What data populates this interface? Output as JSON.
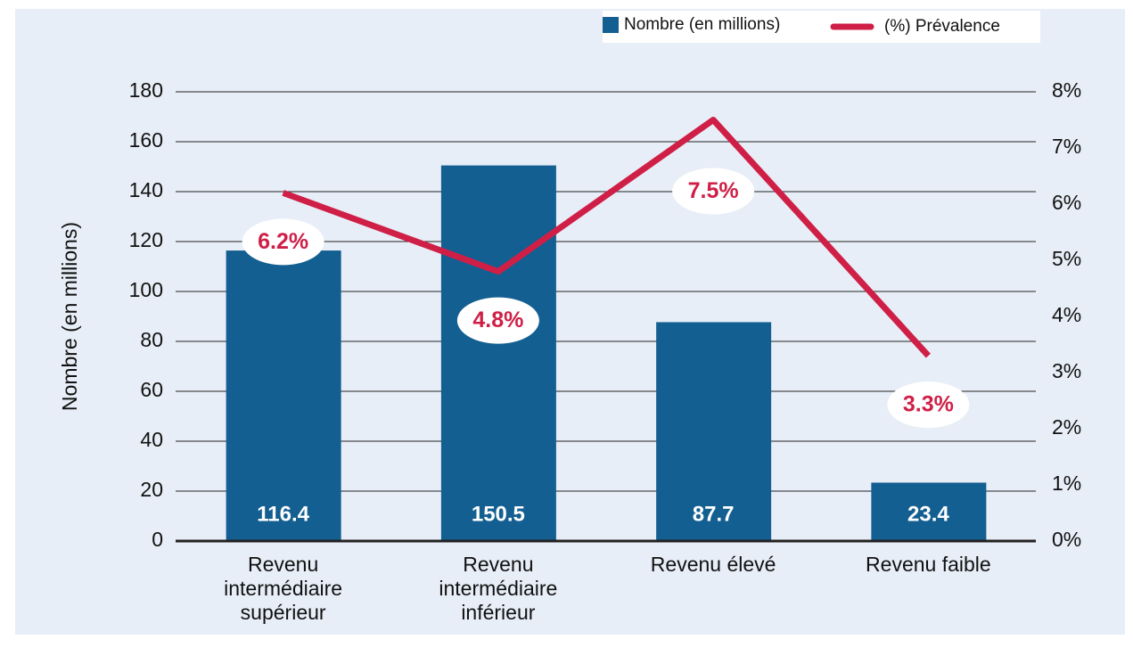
{
  "chart_data": {
    "type": "bar_line",
    "categories": [
      "Revenu intermédiaire supérieur",
      "Revenu intermédiaire inférieur",
      "Revenu élevé",
      "Revenu faible"
    ],
    "series": [
      {
        "name": "Nombre (en millions)",
        "color": "#135f91",
        "type": "bar",
        "values": [
          116.4,
          150.5,
          87.7,
          23.4
        ]
      },
      {
        "name": "(%) Prévalence",
        "color": "#cf1f47",
        "type": "line",
        "axis": "y2",
        "values": [
          6.2,
          4.8,
          7.5,
          3.3
        ],
        "value_labels": [
          "6.2%",
          "4.8%",
          "7.5%",
          "3.3%"
        ]
      }
    ],
    "ylabel": "Nombre (en millions)",
    "ylim": [
      0,
      180
    ],
    "yticks": [
      0,
      20,
      40,
      60,
      80,
      100,
      120,
      140,
      160,
      180
    ],
    "y2lim": [
      0,
      8
    ],
    "y2ticks": [
      {
        "value": 0,
        "label": "0%"
      },
      {
        "value": 1,
        "label": "1%"
      },
      {
        "value": 2,
        "label": "2%"
      },
      {
        "value": 3,
        "label": "3%"
      },
      {
        "value": 4,
        "label": "4%"
      },
      {
        "value": 5,
        "label": "5%"
      },
      {
        "value": 6,
        "label": "6%"
      },
      {
        "value": 7,
        "label": "7%"
      },
      {
        "value": 8,
        "label": "8%"
      }
    ],
    "grid": true,
    "legend": "top-right"
  }
}
